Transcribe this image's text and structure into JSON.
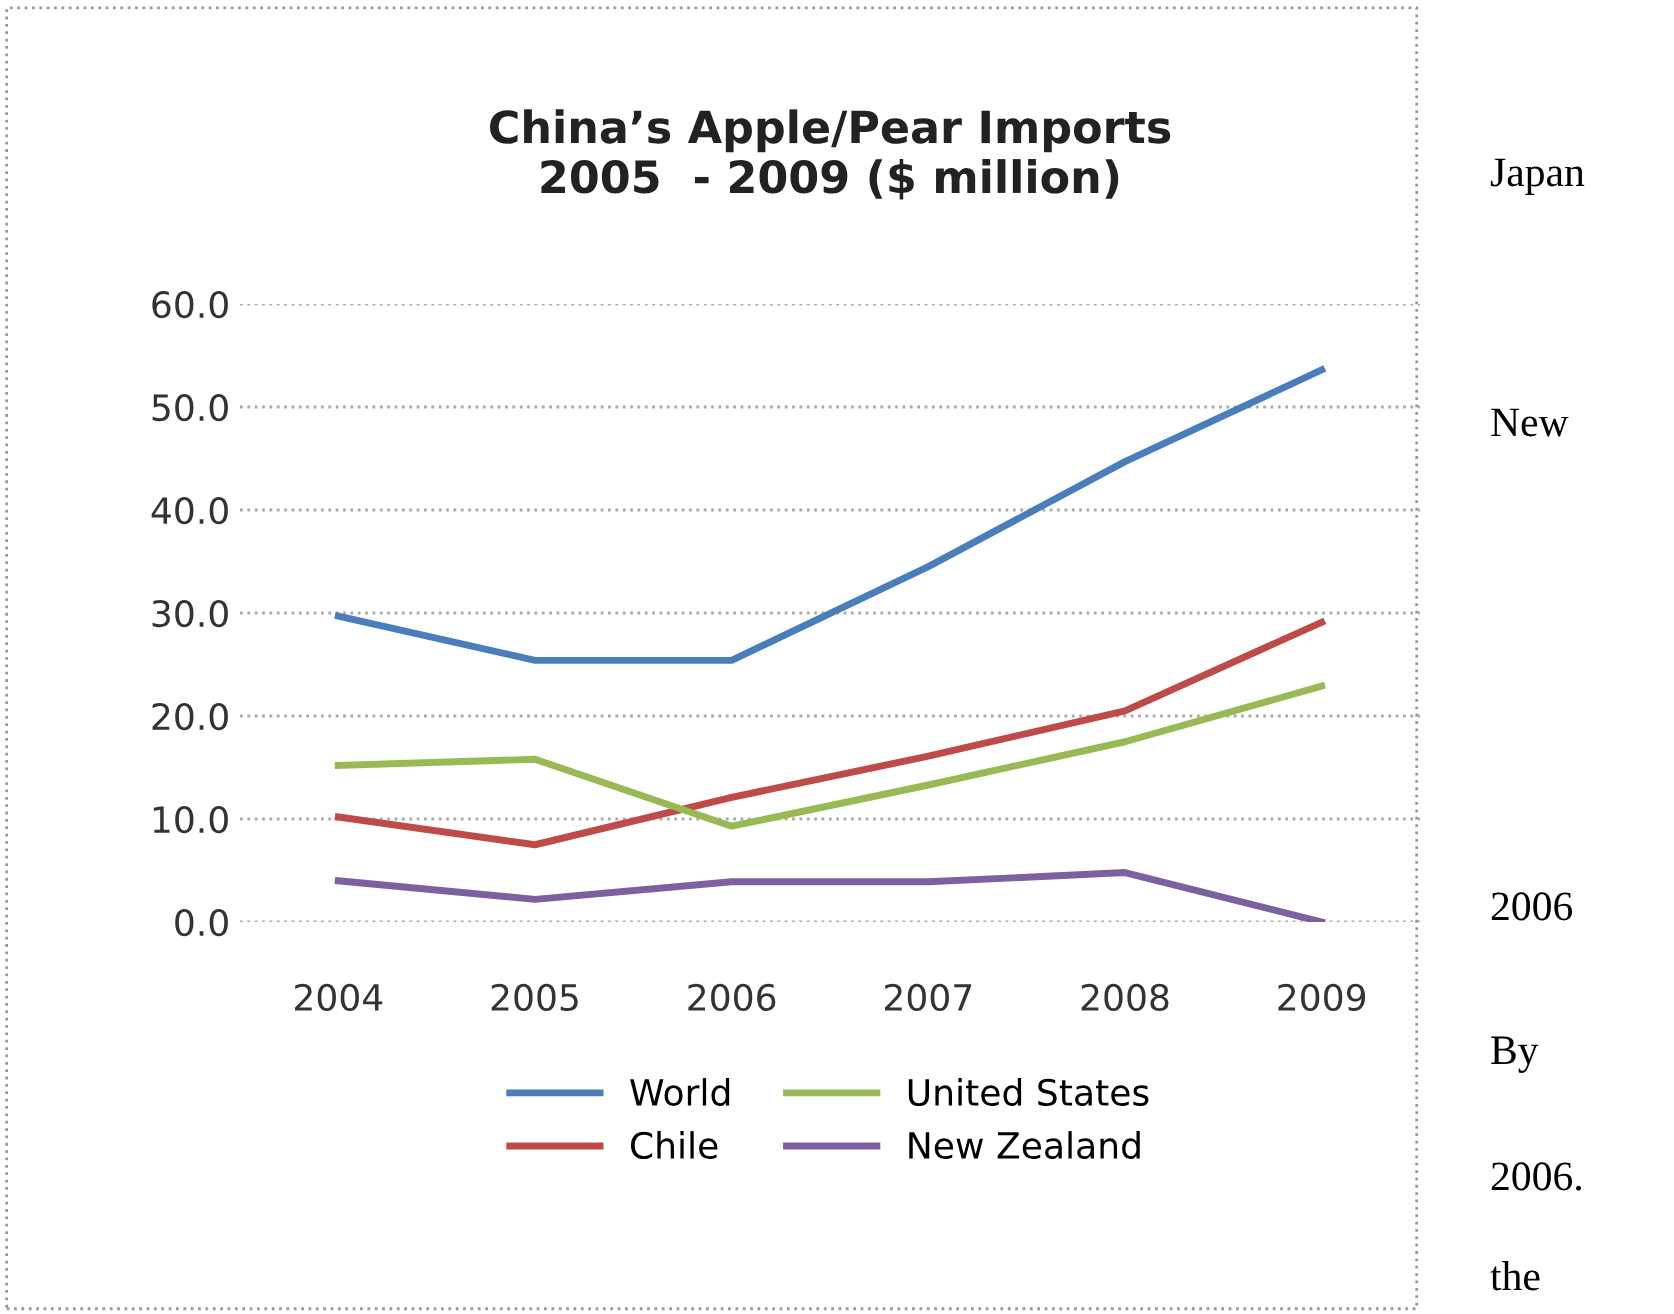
{
  "chart_data": {
    "type": "line",
    "title": "China’s Apple/Pear Imports\n2005  - 2009 ($ million)",
    "categories": [
      "2004",
      "2005",
      "2006",
      "2007",
      "2008",
      "2009"
    ],
    "series": [
      {
        "name": "World",
        "color": "#4a7ebb",
        "values": [
          29.7,
          25.4,
          25.4,
          34.5,
          44.7,
          53.6
        ]
      },
      {
        "name": "Chile",
        "color": "#be4b48",
        "values": [
          10.2,
          7.5,
          12.1,
          16.1,
          20.5,
          29.1
        ]
      },
      {
        "name": "United States",
        "color": "#98b954",
        "values": [
          15.2,
          15.8,
          9.3,
          13.3,
          17.5,
          22.9
        ]
      },
      {
        "name": "New Zealand",
        "color": "#7d60a0",
        "values": [
          4.0,
          2.2,
          3.9,
          3.9,
          4.8,
          0.0
        ]
      }
    ],
    "ylim": [
      0,
      60
    ],
    "yticks": [
      {
        "value": 0,
        "label": "0.0"
      },
      {
        "value": 10,
        "label": "10.0"
      },
      {
        "value": 20,
        "label": "20.0"
      },
      {
        "value": 30,
        "label": "30.0"
      },
      {
        "value": 40,
        "label": "40.0"
      },
      {
        "value": 50,
        "label": "50.0"
      },
      {
        "value": 60,
        "label": "60.0"
      }
    ],
    "grid": "y",
    "legend": "bottom",
    "marker": "none",
    "line_style": "solid",
    "annotations": [
      "Japan",
      "New",
      "2006",
      "By",
      "2006.",
      "the"
    ]
  }
}
